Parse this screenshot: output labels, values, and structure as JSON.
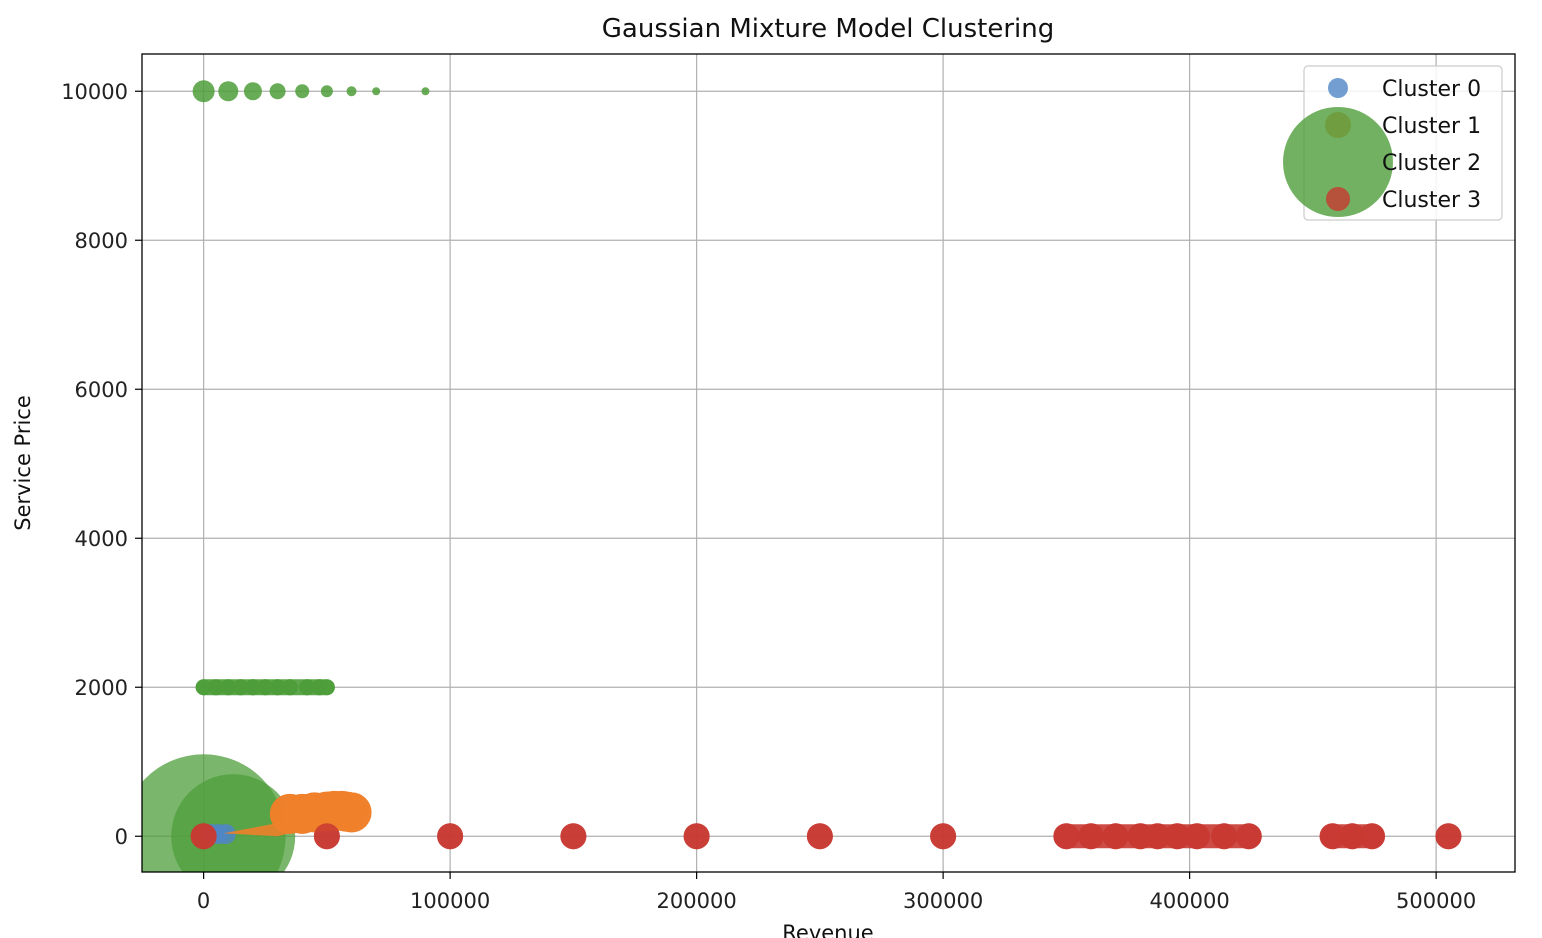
{
  "chart_data": {
    "type": "scatter",
    "title": "Gaussian Mixture Model Clustering",
    "xlabel": "Revenue",
    "ylabel": "Service Price",
    "xlim": [
      -25000,
      532000
    ],
    "ylim": [
      -480,
      10500
    ],
    "xticks": [
      0,
      100000,
      200000,
      300000,
      400000,
      500000
    ],
    "yticks": [
      0,
      2000,
      4000,
      6000,
      8000,
      10000
    ],
    "grid": true,
    "legend_position": "top-right",
    "series": [
      {
        "name": "Cluster 0",
        "color": "#4f86c6",
        "points": [
          [
            3000,
            30
          ],
          [
            6000,
            30
          ],
          [
            9000,
            30
          ]
        ]
      },
      {
        "name": "Cluster 1",
        "color": "#f0802a",
        "points": [
          [
            35000,
            300
          ],
          [
            40000,
            300
          ],
          [
            45000,
            320
          ],
          [
            50000,
            330
          ],
          [
            53000,
            340
          ],
          [
            56000,
            340
          ],
          [
            58000,
            330
          ],
          [
            60000,
            320
          ]
        ]
      },
      {
        "name": "Cluster 2",
        "color": "#4d9e3a",
        "points": [
          [
            0,
            10000
          ],
          [
            10000,
            10000
          ],
          [
            20000,
            10000
          ],
          [
            30000,
            10000
          ],
          [
            40000,
            10000
          ],
          [
            50000,
            10000
          ],
          [
            60000,
            10000
          ],
          [
            70000,
            10000
          ],
          [
            90000,
            10000
          ],
          [
            0,
            2000
          ],
          [
            5000,
            2000
          ],
          [
            10000,
            2000
          ],
          [
            15000,
            2000
          ],
          [
            20000,
            2000
          ],
          [
            25000,
            2000
          ],
          [
            30000,
            2000
          ],
          [
            35000,
            2000
          ],
          [
            42000,
            2000
          ],
          [
            47000,
            2000
          ],
          [
            50000,
            2000
          ],
          [
            0,
            0
          ],
          [
            12000,
            0
          ]
        ]
      },
      {
        "name": "Cluster 3",
        "color": "#c83a32",
        "points": [
          [
            0,
            0
          ],
          [
            50000,
            0
          ],
          [
            100000,
            0
          ],
          [
            150000,
            0
          ],
          [
            200000,
            0
          ],
          [
            250000,
            0
          ],
          [
            300000,
            0
          ],
          [
            350000,
            0
          ],
          [
            360000,
            0
          ],
          [
            370000,
            0
          ],
          [
            380000,
            0
          ],
          [
            387000,
            0
          ],
          [
            395000,
            0
          ],
          [
            403000,
            0
          ],
          [
            414000,
            0
          ],
          [
            424000,
            0
          ],
          [
            458000,
            0
          ],
          [
            466000,
            0
          ],
          [
            474000,
            0
          ],
          [
            505000,
            0
          ]
        ]
      }
    ]
  }
}
